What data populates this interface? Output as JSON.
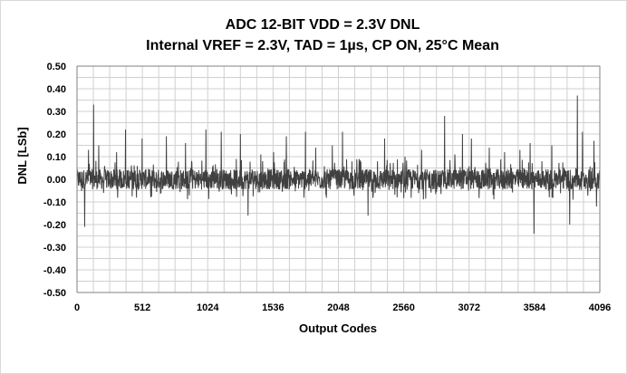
{
  "chart_data": {
    "type": "line",
    "title": {
      "line1": "ADC 12-BIT VDD = 2.3V DNL",
      "line2": "Internal VREF = 2.3V, TAD = 1µs, CP ON, 25°C Mean"
    },
    "xlabel": "Output Codes",
    "ylabel": "DNL [LSb]",
    "xlim": [
      0,
      4096
    ],
    "ylim": [
      -0.5,
      0.5
    ],
    "x_ticks": [
      0,
      512,
      1024,
      1536,
      2048,
      2560,
      3072,
      3584,
      4096
    ],
    "y_ticks": [
      "0.50",
      "0.40",
      "0.30",
      "0.20",
      "0.10",
      "0.00",
      "-0.10",
      "-0.20",
      "-0.30",
      "-0.40",
      "-0.50"
    ],
    "grid": true,
    "legend": "none",
    "series": [
      {
        "color": "#404040",
        "noise_band": [
          -0.08,
          0.08
        ],
        "peaks": [
          {
            "x": 60,
            "y": -0.21
          },
          {
            "x": 90,
            "y": 0.13
          },
          {
            "x": 130,
            "y": 0.33
          },
          {
            "x": 170,
            "y": 0.15
          },
          {
            "x": 310,
            "y": 0.12
          },
          {
            "x": 380,
            "y": 0.22
          },
          {
            "x": 510,
            "y": 0.18
          },
          {
            "x": 700,
            "y": 0.19
          },
          {
            "x": 850,
            "y": 0.16
          },
          {
            "x": 1010,
            "y": 0.22
          },
          {
            "x": 1130,
            "y": 0.21
          },
          {
            "x": 1280,
            "y": 0.2
          },
          {
            "x": 1340,
            "y": -0.16
          },
          {
            "x": 1440,
            "y": 0.11
          },
          {
            "x": 1540,
            "y": 0.12
          },
          {
            "x": 1640,
            "y": 0.19
          },
          {
            "x": 1790,
            "y": 0.21
          },
          {
            "x": 1870,
            "y": 0.14
          },
          {
            "x": 2000,
            "y": 0.15
          },
          {
            "x": 2080,
            "y": 0.21
          },
          {
            "x": 2210,
            "y": 0.09
          },
          {
            "x": 2280,
            "y": -0.16
          },
          {
            "x": 2410,
            "y": 0.18
          },
          {
            "x": 2570,
            "y": 0.1
          },
          {
            "x": 2700,
            "y": 0.13
          },
          {
            "x": 2880,
            "y": 0.28
          },
          {
            "x": 2960,
            "y": 0.11
          },
          {
            "x": 3020,
            "y": 0.2
          },
          {
            "x": 3090,
            "y": 0.18
          },
          {
            "x": 3230,
            "y": 0.14
          },
          {
            "x": 3350,
            "y": 0.12
          },
          {
            "x": 3470,
            "y": 0.13
          },
          {
            "x": 3550,
            "y": 0.16
          },
          {
            "x": 3580,
            "y": -0.24
          },
          {
            "x": 3720,
            "y": 0.15
          },
          {
            "x": 3860,
            "y": -0.2
          },
          {
            "x": 3920,
            "y": 0.37
          },
          {
            "x": 3960,
            "y": 0.21
          },
          {
            "x": 4050,
            "y": 0.17
          },
          {
            "x": 4070,
            "y": -0.12
          }
        ]
      }
    ]
  }
}
